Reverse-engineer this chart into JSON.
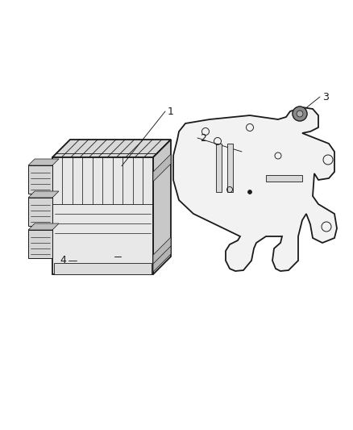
{
  "background_color": "#ffffff",
  "line_color": "#1a1a1a",
  "label_color": "#1a1a1a",
  "figsize": [
    4.39,
    5.33
  ],
  "dpi": 100,
  "label_fontsize": 9
}
